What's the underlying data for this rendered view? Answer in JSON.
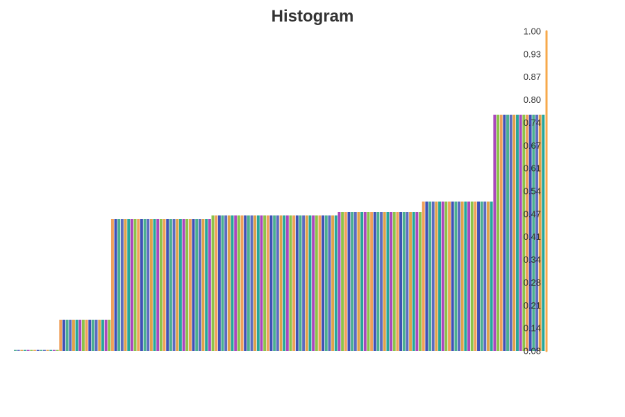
{
  "chart_data": {
    "type": "bar",
    "title": "Histogram",
    "xlabel": "",
    "ylabel": "",
    "ylim": [
      0.08,
      1.0
    ],
    "y_axis_position": "right",
    "y_ticks": [
      "0.08",
      "0.14",
      "0.21",
      "0.28",
      "0.34",
      "0.41",
      "0.47",
      "0.54",
      "0.61",
      "0.67",
      "0.74",
      "0.80",
      "0.87",
      "0.93",
      "1.00"
    ],
    "grid": false,
    "legend": "none",
    "bins": [
      {
        "value": 0.08,
        "count": 14
      },
      {
        "value": 0.17,
        "count": 16
      },
      {
        "value": 0.46,
        "count": 31
      },
      {
        "value": 0.47,
        "count": 39
      },
      {
        "value": 0.48,
        "count": 26
      },
      {
        "value": 0.51,
        "count": 22
      },
      {
        "value": 0.76,
        "count": 16
      }
    ],
    "bar_colors": [
      "#4caf90",
      "#5c6bc0",
      "#e0a24a",
      "#26a69a",
      "#ab47bc",
      "#8bc34a",
      "#f0a05a",
      "#3f51b5"
    ]
  },
  "colors": {
    "axis": "#f7a94b",
    "text": "#333333"
  }
}
